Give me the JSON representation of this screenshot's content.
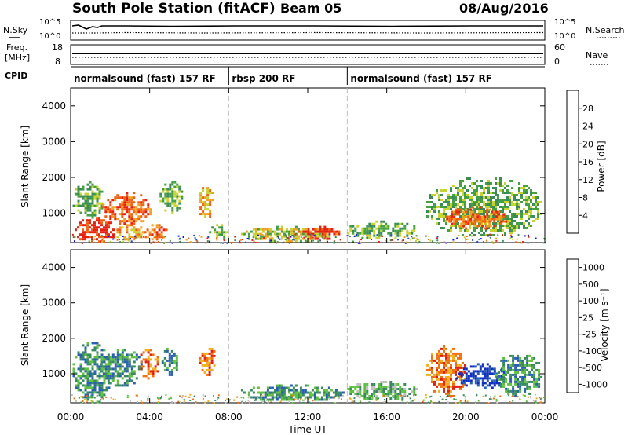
{
  "header": {
    "title": "South Pole Station (fitACF)",
    "beam": "Beam 05",
    "date": "08/Aug/2016"
  },
  "strips": {
    "nsky_label": "N.Sky",
    "nsearch_label": "N.Search",
    "freq_label_line1": "Freq.",
    "freq_label_line2": "[MHz]",
    "nave_label": "Nave",
    "cpid_label": "CPID",
    "noise_left_ticks": [
      "10^5",
      "10^0"
    ],
    "noise_right_ticks": [
      "10^5",
      "10^0"
    ],
    "freq_left_ticks": [
      "18",
      "8"
    ],
    "freq_right_ticks": [
      "60",
      "0"
    ]
  },
  "cpid_segments": [
    {
      "label": "normalsound (fast) 157 RF",
      "start_hour": 0,
      "end_hour": 8
    },
    {
      "label": "rbsp 200 RF",
      "start_hour": 8,
      "end_hour": 14
    },
    {
      "label": "normalsound (fast) 157 RF",
      "start_hour": 14,
      "end_hour": 24
    }
  ],
  "chart_data": [
    {
      "type": "heatmap",
      "panel": "power",
      "ylabel": "Slant Range [km]",
      "xlabel": "",
      "xlim": [
        0,
        24
      ],
      "ylim": [
        180,
        4500
      ],
      "yticks": [
        "1000",
        "2000",
        "3000",
        "4000"
      ],
      "colorbar": {
        "label": "Power [dB]",
        "ticks": [
          "4",
          "8",
          "12",
          "16",
          "20",
          "24",
          "28"
        ],
        "colors": [
          "#1010ee",
          "#2550b8",
          "#3a8a5a",
          "#44a040",
          "#c8d230",
          "#f0a020",
          "#f06010",
          "#e82010"
        ]
      },
      "echo_regions": [
        {
          "t0": 0.2,
          "t1": 2.2,
          "r0": 200,
          "r1": 900,
          "level": 7
        },
        {
          "t0": 0.1,
          "t1": 1.6,
          "r0": 900,
          "r1": 1900,
          "level": 3
        },
        {
          "t0": 1.6,
          "t1": 4.0,
          "r0": 700,
          "r1": 1600,
          "level": 6
        },
        {
          "t0": 2.2,
          "t1": 3.8,
          "r0": 250,
          "r1": 700,
          "level": 5
        },
        {
          "t0": 3.6,
          "t1": 4.9,
          "r0": 250,
          "r1": 700,
          "level": 6
        },
        {
          "t0": 4.5,
          "t1": 5.6,
          "r0": 1000,
          "r1": 1900,
          "level": 3
        },
        {
          "t0": 6.4,
          "t1": 7.2,
          "r0": 900,
          "r1": 1800,
          "level": 5
        },
        {
          "t0": 7.0,
          "t1": 8.0,
          "r0": 250,
          "r1": 700,
          "level": 3
        },
        {
          "t0": 8.5,
          "t1": 13.5,
          "r0": 250,
          "r1": 650,
          "level": 4
        },
        {
          "t0": 11.5,
          "t1": 13.6,
          "r0": 300,
          "r1": 650,
          "level": 7
        },
        {
          "t0": 14.0,
          "t1": 17.5,
          "r0": 300,
          "r1": 800,
          "level": 3
        },
        {
          "t0": 18.0,
          "t1": 23.8,
          "r0": 400,
          "r1": 2000,
          "level": 3
        },
        {
          "t0": 19.0,
          "t1": 22.0,
          "r0": 600,
          "r1": 1200,
          "level": 6
        }
      ]
    },
    {
      "type": "heatmap",
      "panel": "velocity",
      "ylabel": "Slant Range [km]",
      "xlabel": "Time UT",
      "xlim": [
        0,
        24
      ],
      "ylim": [
        180,
        4500
      ],
      "yticks": [
        "1000",
        "2000",
        "3000",
        "4000"
      ],
      "xticks": [
        "00:00",
        "04:00",
        "08:00",
        "12:00",
        "16:00",
        "20:00",
        "00:00"
      ],
      "colorbar": {
        "label": "Velocity [m s⁻¹]",
        "ticks": [
          "1000",
          "500",
          "100",
          "25",
          "-25",
          "-100",
          "-500",
          "-1000"
        ],
        "colors": [
          "#1030c0",
          "#2a60b0",
          "#3a8a60",
          "#60c040",
          "#c0c0c0",
          "#f0b020",
          "#f07010",
          "#e02010"
        ]
      },
      "echo_regions": [
        {
          "t0": 0.1,
          "t1": 2.0,
          "r0": 200,
          "r1": 1900,
          "level": 2
        },
        {
          "t0": 1.5,
          "t1": 3.6,
          "r0": 700,
          "r1": 1700,
          "level": 2
        },
        {
          "t0": 3.4,
          "t1": 4.4,
          "r0": 900,
          "r1": 1700,
          "level": 6
        },
        {
          "t0": 4.6,
          "t1": 5.4,
          "r0": 1000,
          "r1": 1800,
          "level": 2
        },
        {
          "t0": 6.5,
          "t1": 7.3,
          "r0": 1000,
          "r1": 1800,
          "level": 6
        },
        {
          "t0": 8.5,
          "t1": 13.8,
          "r0": 250,
          "r1": 700,
          "level": 2
        },
        {
          "t0": 14.0,
          "t1": 17.5,
          "r0": 300,
          "r1": 800,
          "level": 3
        },
        {
          "t0": 18.0,
          "t1": 20.0,
          "r0": 400,
          "r1": 1800,
          "level": 6
        },
        {
          "t0": 19.5,
          "t1": 22.0,
          "r0": 600,
          "r1": 1300,
          "level": 0
        },
        {
          "t0": 21.5,
          "t1": 23.8,
          "r0": 400,
          "r1": 1600,
          "level": 2
        }
      ]
    }
  ]
}
